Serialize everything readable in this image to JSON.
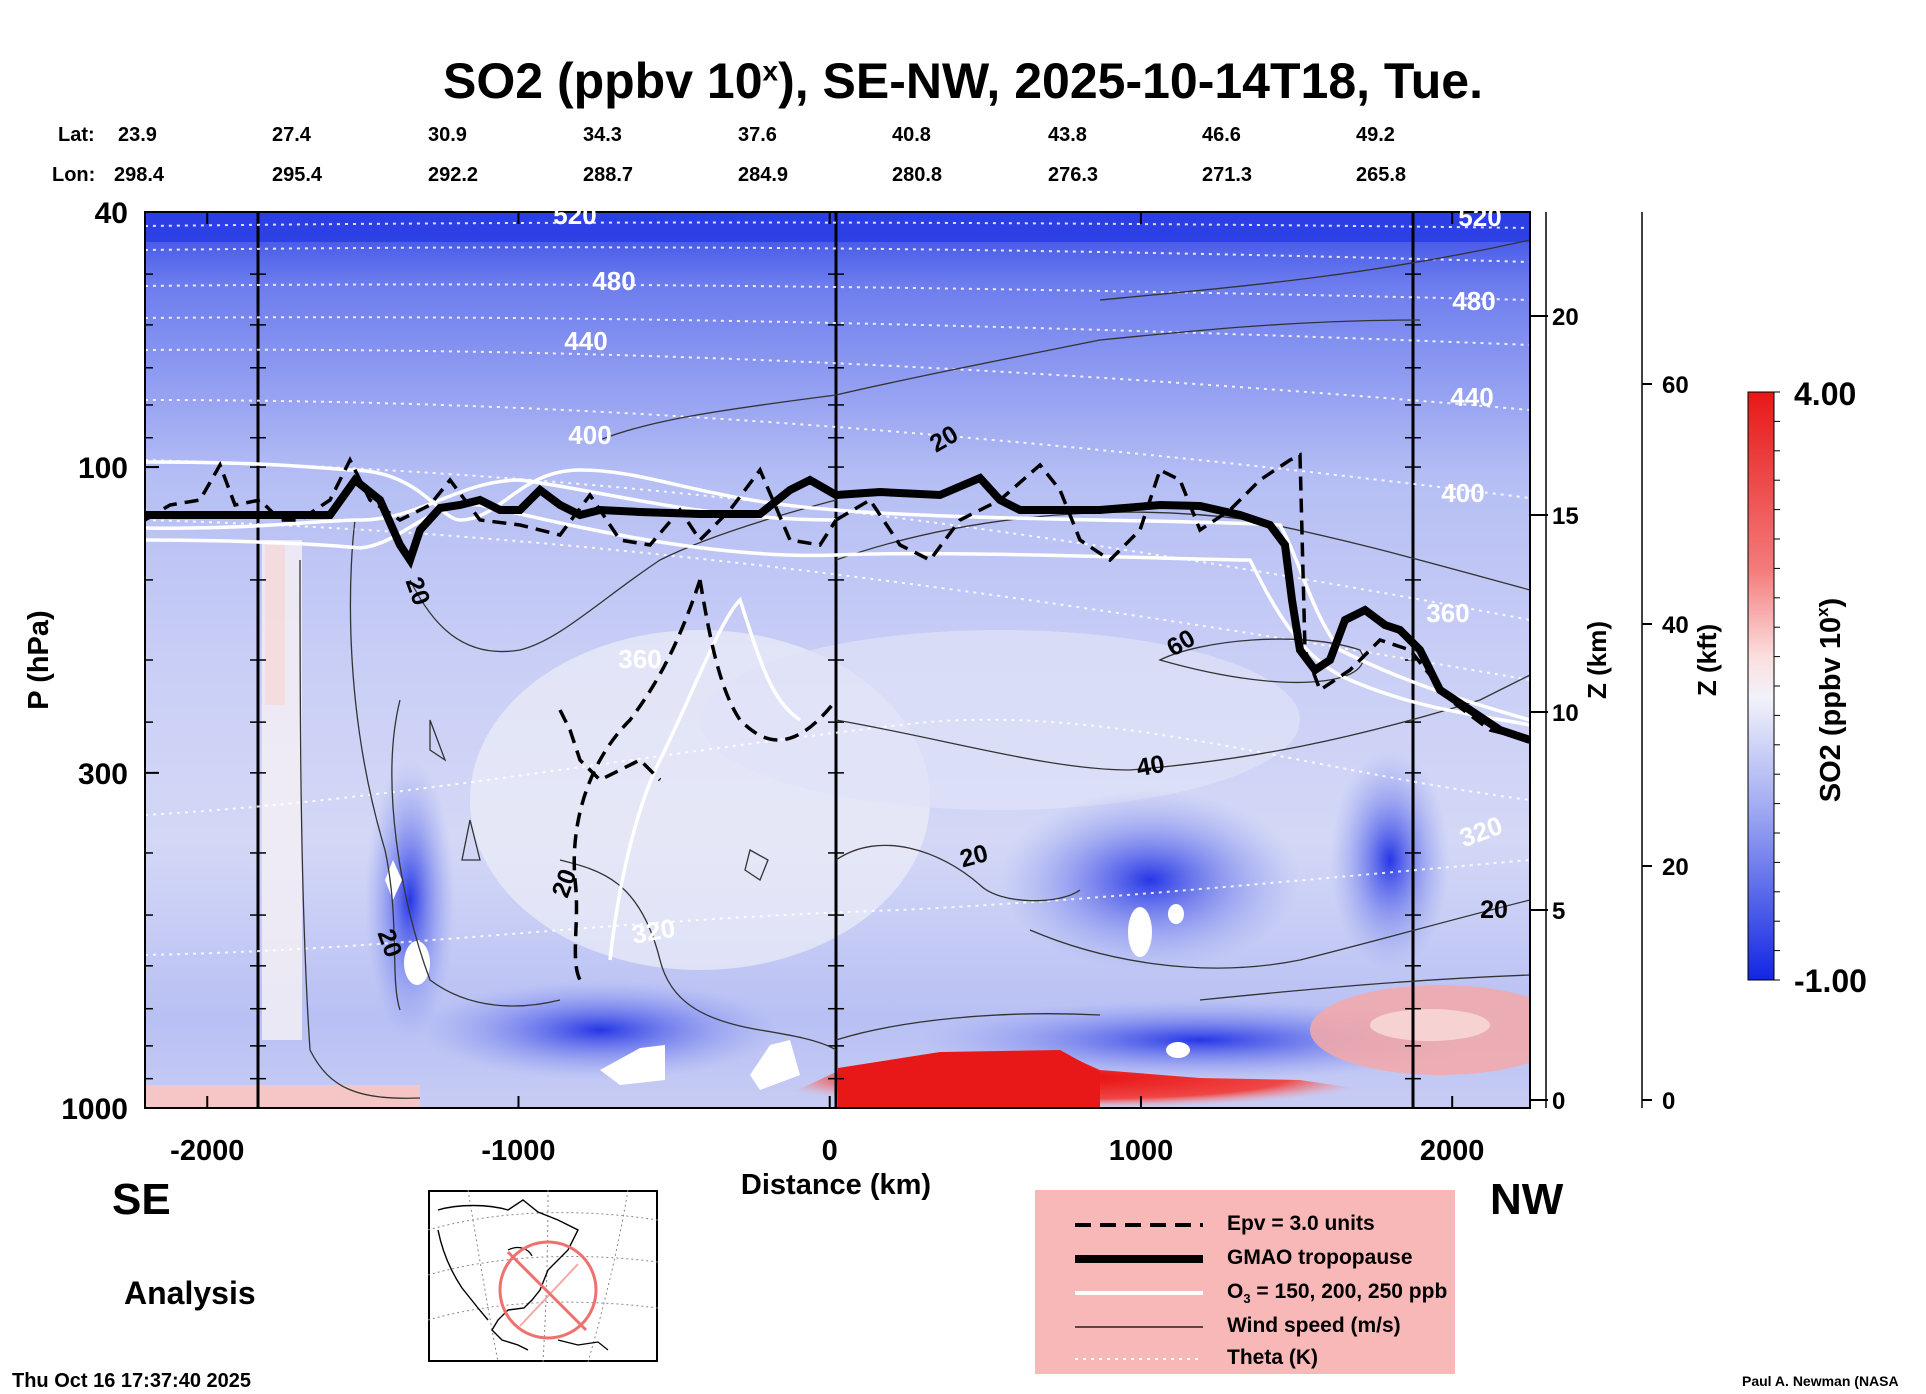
{
  "title": {
    "main": "SO2 (ppbv 10",
    "sup": "x",
    "rest": "), SE-NW, 2025-10-14T18, Tue."
  },
  "header": {
    "lat_label": "Lat:",
    "lon_label": "Lon:",
    "lat": [
      "23.9",
      "27.4",
      "30.9",
      "34.3",
      "37.6",
      "40.8",
      "43.8",
      "46.6",
      "49.2"
    ],
    "lon": [
      "298.4",
      "295.4",
      "292.2",
      "288.7",
      "284.9",
      "280.8",
      "276.3",
      "271.3",
      "265.8"
    ]
  },
  "chart_data": {
    "type": "heatmap",
    "title": "SO2 (ppbv 10^x), SE-NW, 2025-10-14T18, Tue.",
    "xlabel": "Distance (km)",
    "ylabel": "P (hPa)",
    "xlim": [
      -2200,
      2250
    ],
    "ylim": [
      1000,
      40
    ],
    "x_ticks": [
      "-2000",
      "-1000",
      "0",
      "1000",
      "2000"
    ],
    "y_ticks": [
      "40",
      "100",
      "300",
      "1000"
    ],
    "z_km_label": "Z (km)",
    "z_km_ticks": [
      "20",
      "15",
      "10",
      "5",
      "0"
    ],
    "z_kft_label": "Z (kft)",
    "z_kft_ticks": [
      "60",
      "40",
      "20",
      "0"
    ],
    "colorbar": {
      "label": "SO2 (ppbv 10",
      "label_sup": "x",
      "label_end": ")",
      "max": "4.00",
      "min": "-1.00"
    },
    "theta_labels": [
      "520",
      "480",
      "440",
      "400",
      "360",
      "320",
      "520",
      "480",
      "440",
      "400",
      "360",
      "320"
    ],
    "wind_labels": [
      "20",
      "20",
      "20",
      "20",
      "60",
      "40",
      "20",
      "20"
    ],
    "side_labels": {
      "left": "SE",
      "right": "NW"
    },
    "legend": [
      {
        "label": "Epv = 3.0 units",
        "style": "dashed-black"
      },
      {
        "label": "GMAO tropopause",
        "style": "thick-black"
      },
      {
        "label": "O",
        "sub": "3",
        "rest": " = 150, 200, 250 ppb",
        "style": "white"
      },
      {
        "label": "Wind speed (m/s)",
        "style": "thin-black"
      },
      {
        "label": "Theta (K)",
        "style": "dotted-white"
      }
    ],
    "colors": {
      "high": "#e81818",
      "low": "#1a2ee6",
      "mid": "#e8e8f4",
      "legend_bg": "#f8b8b8"
    }
  },
  "footer": {
    "analysis": "Analysis",
    "timestamp": "Thu Oct 16 17:37:40 2025",
    "credit": "Paul A. Newman (NASA"
  }
}
